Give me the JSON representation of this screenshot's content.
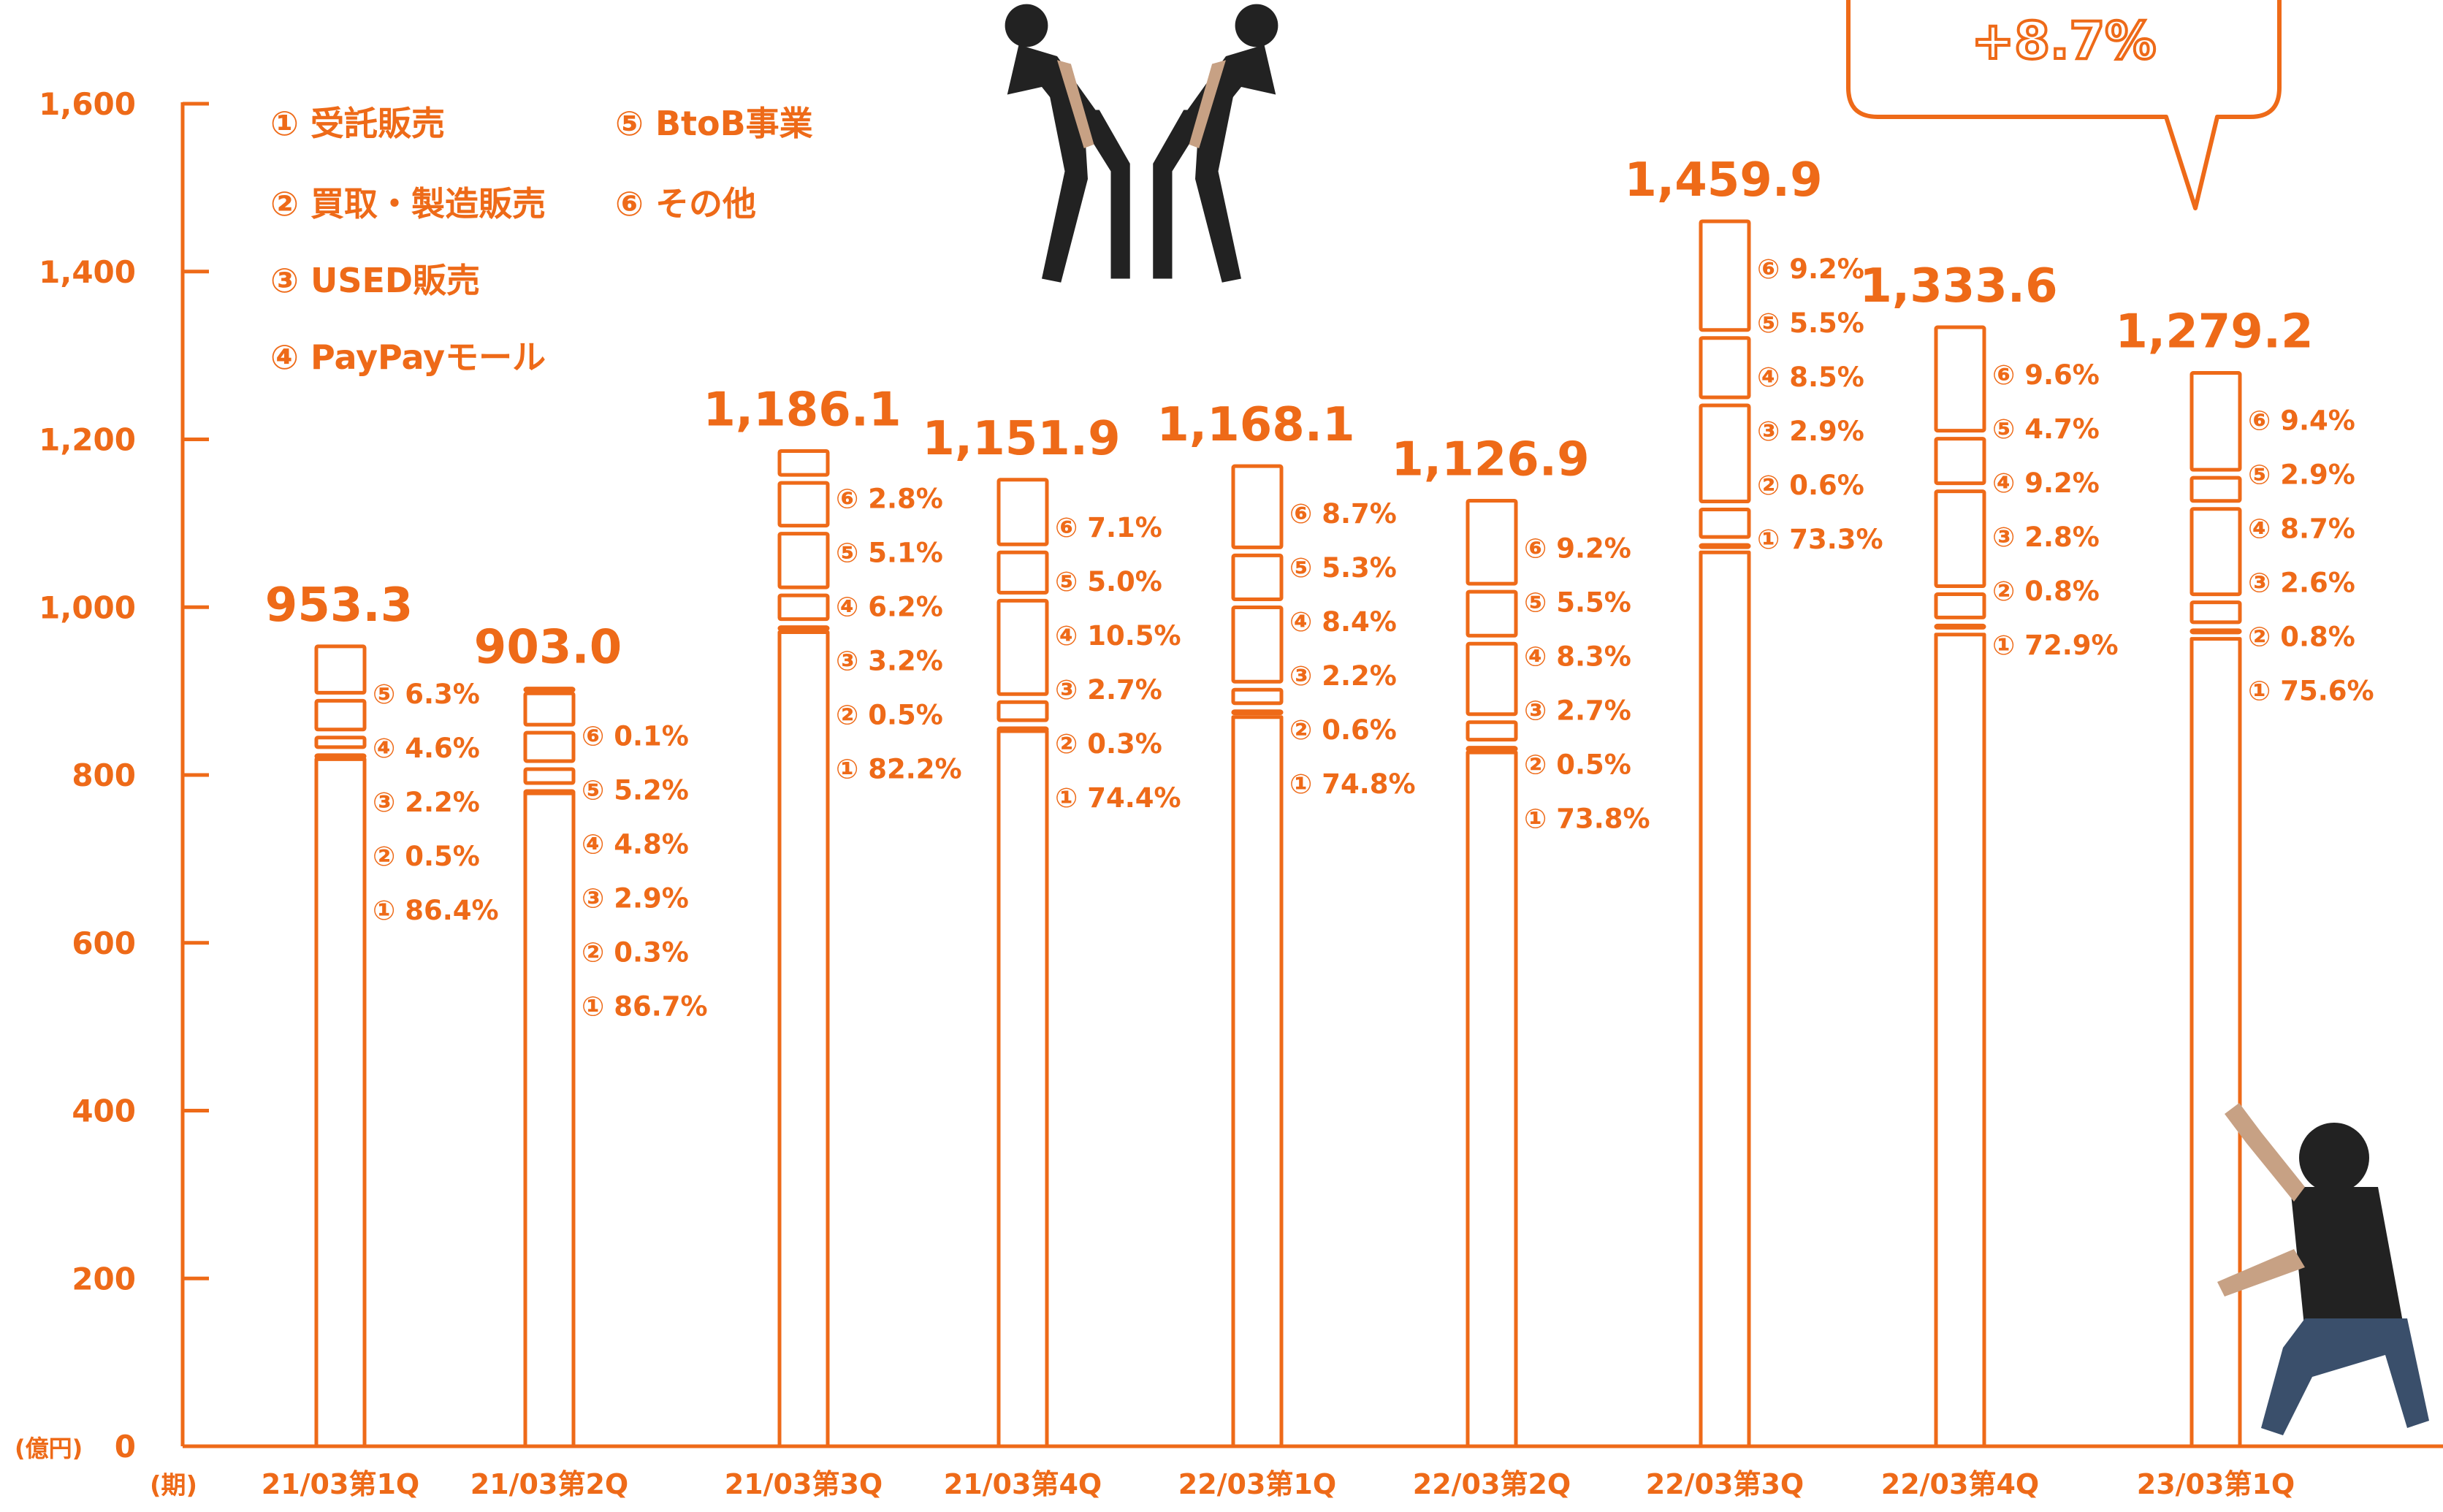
{
  "chart_data": {
    "type": "bar",
    "unit_label": "(億円)",
    "period_label": "(期)",
    "ylim": [
      0,
      1600
    ],
    "yticks": [
      0,
      200,
      400,
      600,
      800,
      "1,000",
      "1,200",
      "1,400",
      "1,600"
    ],
    "ytick_values": [
      0,
      200,
      400,
      600,
      800,
      1000,
      1200,
      1400,
      1600
    ],
    "legend": [
      {
        "label": "① 受託販売"
      },
      {
        "label": "② 買取・製造販売"
      },
      {
        "label": "③ USED販売"
      },
      {
        "label": "④ PayPayモール"
      },
      {
        "label": "⑤ BtoB事業"
      },
      {
        "label": "⑥ その他"
      }
    ],
    "callout": "+8.7%",
    "bars": [
      {
        "category": "21/03第1Q",
        "total": 953.3,
        "total_label": "953.3",
        "segment_labels": [
          "① 86.4%",
          "② 0.5%",
          "③ 2.2%",
          "④ 4.6%",
          "⑤ 6.3%"
        ],
        "segments": [
          86.4,
          0.5,
          2.2,
          4.6,
          6.3
        ]
      },
      {
        "category": "21/03第2Q",
        "total": 903.0,
        "total_label": "903.0",
        "segment_labels": [
          "① 86.7%",
          "② 0.3%",
          "③ 2.9%",
          "④ 4.8%",
          "⑤ 5.2%",
          "⑥ 0.1%"
        ],
        "segments": [
          86.7,
          0.3,
          2.9,
          4.8,
          5.2,
          0.1
        ]
      },
      {
        "category": "21/03第3Q",
        "total": 1186.1,
        "total_label": "1,186.1",
        "segment_labels": [
          "① 82.2%",
          "② 0.5%",
          "③ 3.2%",
          "④ 6.2%",
          "⑤ 5.1%",
          "⑥ 2.8%"
        ],
        "segments": [
          82.2,
          0.5,
          3.2,
          6.2,
          5.1,
          2.8
        ]
      },
      {
        "category": "21/03第4Q",
        "total": 1151.9,
        "total_label": "1,151.9",
        "segment_labels": [
          "① 74.4%",
          "② 0.3%",
          "③ 2.7%",
          "④ 10.5%",
          "⑤ 5.0%",
          "⑥ 7.1%"
        ],
        "segments": [
          74.4,
          0.3,
          2.7,
          10.5,
          5.0,
          7.1
        ]
      },
      {
        "category": "22/03第1Q",
        "total": 1168.1,
        "total_label": "1,168.1",
        "segment_labels": [
          "① 74.8%",
          "② 0.6%",
          "③ 2.2%",
          "④ 8.4%",
          "⑤ 5.3%",
          "⑥ 8.7%"
        ],
        "segments": [
          74.8,
          0.6,
          2.2,
          8.4,
          5.3,
          8.7
        ]
      },
      {
        "category": "22/03第2Q",
        "total": 1126.9,
        "total_label": "1,126.9",
        "segment_labels": [
          "① 73.8%",
          "② 0.5%",
          "③ 2.7%",
          "④ 8.3%",
          "⑤ 5.5%",
          "⑥ 9.2%"
        ],
        "segments": [
          73.8,
          0.5,
          2.7,
          8.3,
          5.5,
          9.2
        ]
      },
      {
        "category": "22/03第3Q",
        "total": 1459.9,
        "total_label": "1,459.9",
        "segment_labels": [
          "① 73.3%",
          "② 0.6%",
          "③ 2.9%",
          "④ 8.5%",
          "⑤ 5.5%",
          "⑥ 9.2%"
        ],
        "segments": [
          73.3,
          0.6,
          2.9,
          8.5,
          5.5,
          9.2
        ]
      },
      {
        "category": "22/03第4Q",
        "total": 1333.6,
        "total_label": "1,333.6",
        "segment_labels": [
          "① 72.9%",
          "② 0.8%",
          "③ 2.8%",
          "④ 9.2%",
          "⑤ 4.7%",
          "⑥ 9.6%"
        ],
        "segments": [
          72.9,
          0.8,
          2.8,
          9.2,
          4.7,
          9.6
        ]
      },
      {
        "category": "23/03第1Q",
        "total": 1279.2,
        "total_label": "1,279.2",
        "segment_labels": [
          "① 75.6%",
          "② 0.8%",
          "③ 2.6%",
          "④ 8.7%",
          "⑤ 2.9%",
          "⑥ 9.4%"
        ],
        "segments": [
          75.6,
          0.8,
          2.6,
          8.7,
          2.9,
          9.4
        ]
      }
    ],
    "colors": {
      "accent": "#ee6a18",
      "text": "#ee6a18",
      "figure_dark": "#222222"
    }
  }
}
